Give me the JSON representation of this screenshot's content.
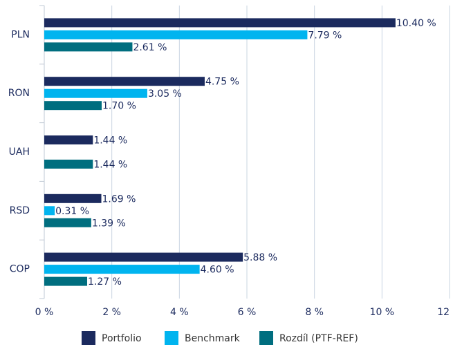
{
  "chart_data": {
    "type": "bar",
    "orientation": "horizontal",
    "categories": [
      "PLN",
      "RON",
      "UAH",
      "RSD",
      "COP"
    ],
    "series": [
      {
        "name": "Portfolio",
        "color": "#1b2a5e",
        "values": [
          10.4,
          4.75,
          1.44,
          1.69,
          5.88
        ],
        "value_labels": [
          "10.40 %",
          "4.75 %",
          "1.44 %",
          "1.69 %",
          "5.88 %"
        ]
      },
      {
        "name": "Benchmark",
        "color": "#00b4ef",
        "values": [
          7.79,
          3.05,
          null,
          0.31,
          4.6
        ],
        "value_labels": [
          "7.79 %",
          "3.05 %",
          null,
          "0.31 %",
          "4.60 %"
        ]
      },
      {
        "name": "Rozdíl (PTF-REF)",
        "color": "#006e7f",
        "values": [
          2.61,
          1.7,
          1.44,
          1.39,
          1.27
        ],
        "value_labels": [
          "2.61 %",
          "1.70 %",
          "1.44 %",
          "1.39 %",
          "1.27 %"
        ]
      }
    ],
    "xlim": [
      0,
      12
    ],
    "xticks": [
      {
        "value": 0,
        "label": "0 %"
      },
      {
        "value": 2,
        "label": "2 %"
      },
      {
        "value": 4,
        "label": "4 %"
      },
      {
        "value": 6,
        "label": "6 %"
      },
      {
        "value": 8,
        "label": "8 %"
      },
      {
        "value": 10,
        "label": "10 %"
      },
      {
        "value": 12,
        "label": "12 %"
      }
    ],
    "grid": true,
    "legend": "bottom"
  }
}
